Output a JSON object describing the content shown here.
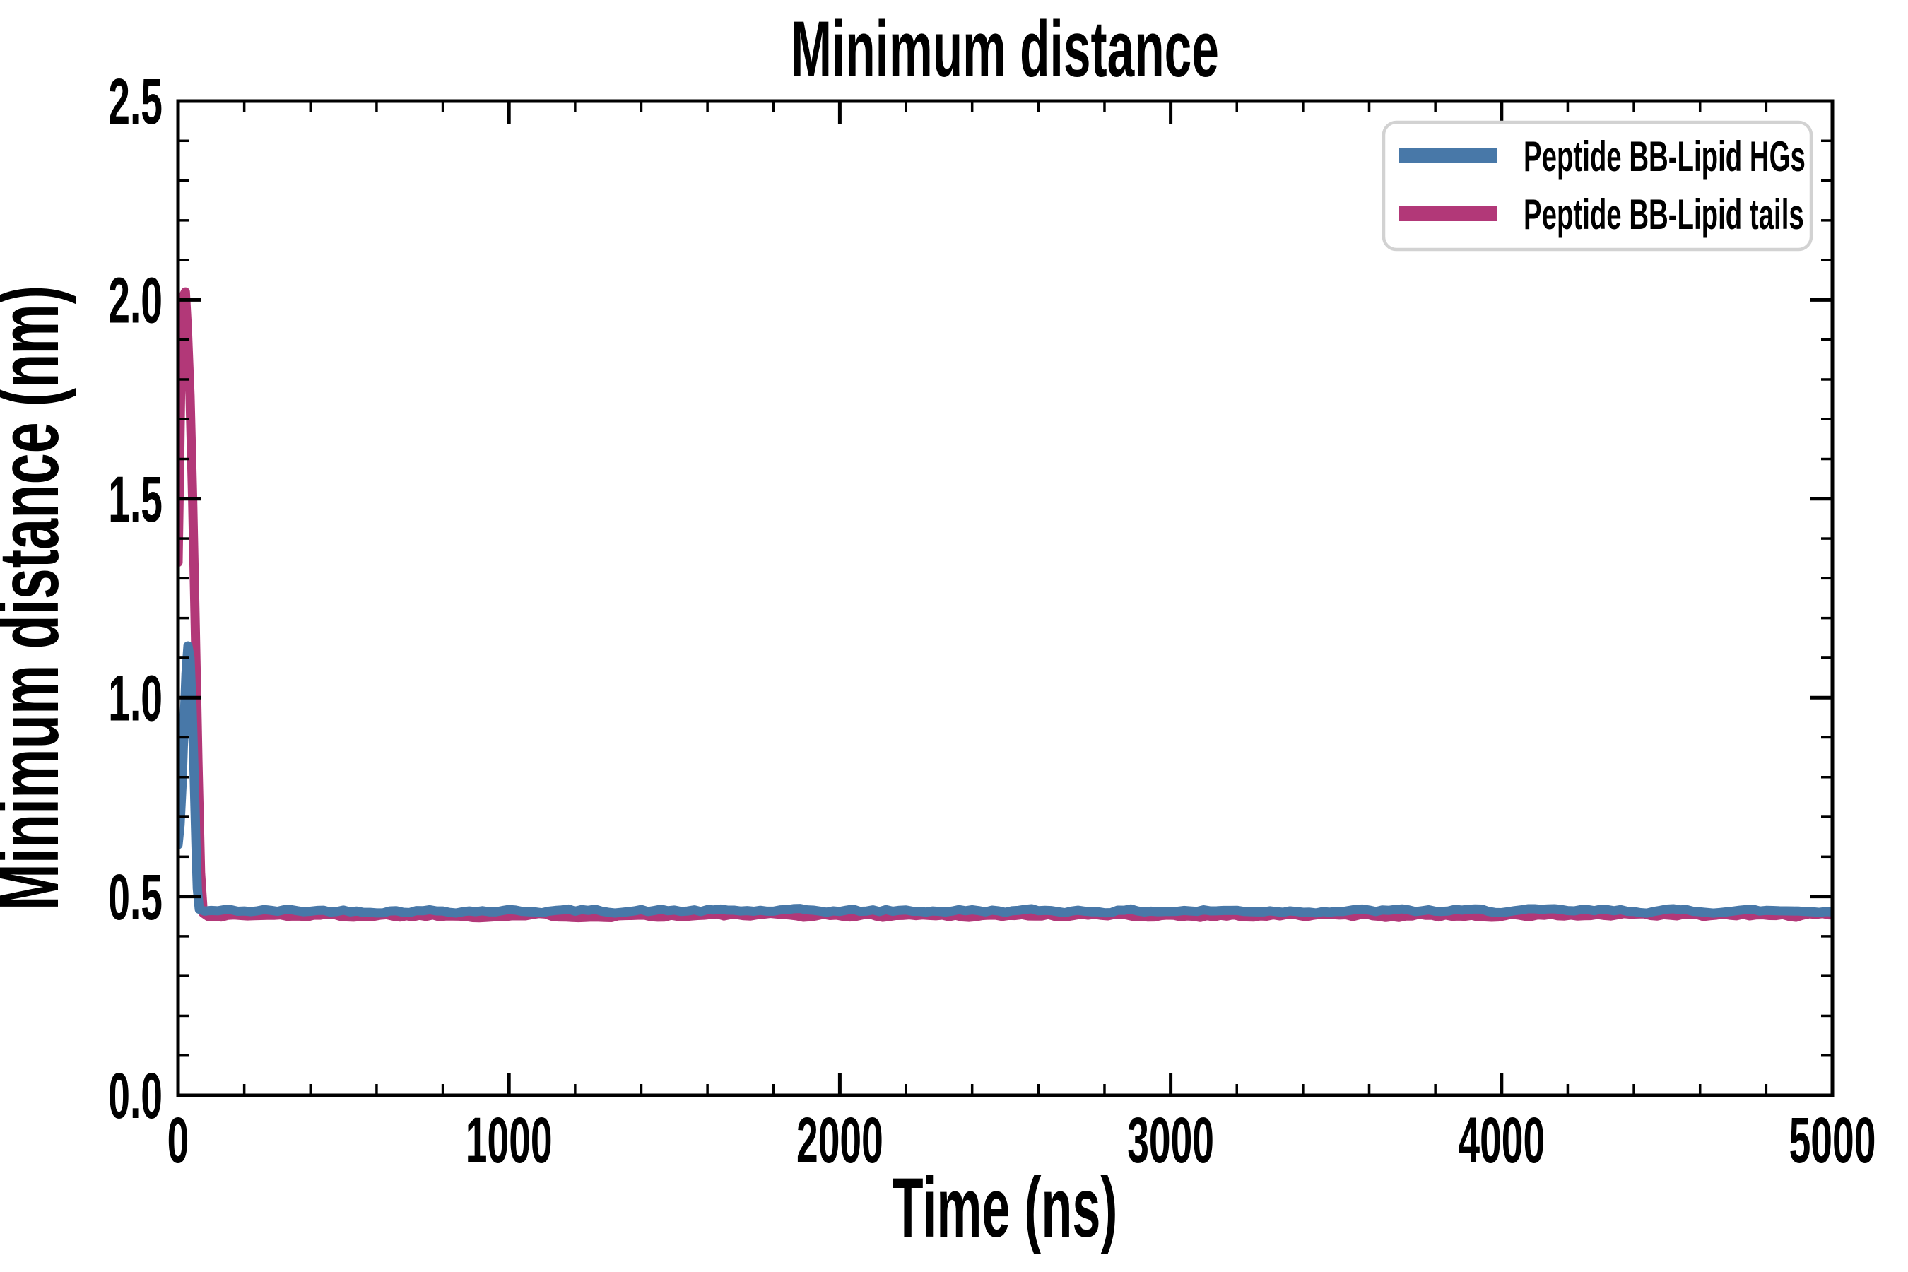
{
  "figure": {
    "background": "#ffffff",
    "spine_color": "#000000",
    "tick_direction": "in"
  },
  "chart_data": {
    "type": "line",
    "title": "Minimum distance",
    "xlabel": "Time (ns)",
    "ylabel": "Minimum distance (nm)",
    "xlim": [
      0,
      5000
    ],
    "ylim": [
      0.0,
      2.5
    ],
    "grid": false,
    "x_major_ticks": [
      0,
      1000,
      2000,
      3000,
      4000,
      5000
    ],
    "x_tick_labels": [
      "0",
      "1000",
      "2000",
      "3000",
      "4000",
      "5000"
    ],
    "x_minor_step": 200,
    "y_major_ticks": [
      0.0,
      0.5,
      1.0,
      1.5,
      2.0,
      2.5
    ],
    "y_tick_labels": [
      "0.0",
      "0.5",
      "1.0",
      "1.5",
      "2.0",
      "2.5"
    ],
    "y_minor_step": 0.1,
    "legend_position": "upper right",
    "legend": {
      "border_color": "#d2d2d2",
      "background": "#ffffff"
    },
    "series": [
      {
        "name": "Peptide BB-Lipid HGs",
        "color": "#4878a8",
        "z": 2,
        "line_width": 13,
        "spike_points": [
          [
            0,
            0.63
          ],
          [
            6,
            0.68
          ],
          [
            12,
            0.78
          ],
          [
            18,
            0.93
          ],
          [
            24,
            1.06
          ],
          [
            30,
            1.13
          ],
          [
            36,
            1.1
          ],
          [
            42,
            0.98
          ],
          [
            48,
            0.82
          ],
          [
            54,
            0.63
          ],
          [
            58,
            0.52
          ],
          [
            64,
            0.468
          ],
          [
            80,
            0.463
          ]
        ],
        "flat": {
          "from": 80,
          "to": 5000,
          "value": 0.464,
          "noise": 0.008,
          "step": 20,
          "seed": 42
        }
      },
      {
        "name": "Peptide BB-Lipid tails",
        "color": "#b23878",
        "z": 1,
        "line_width": 13,
        "spike_points": [
          [
            0,
            1.34
          ],
          [
            4,
            1.55
          ],
          [
            8,
            1.78
          ],
          [
            12,
            1.93
          ],
          [
            16,
            2.01
          ],
          [
            22,
            2.02
          ],
          [
            28,
            1.93
          ],
          [
            36,
            1.76
          ],
          [
            44,
            1.5
          ],
          [
            52,
            1.18
          ],
          [
            60,
            0.84
          ],
          [
            68,
            0.56
          ],
          [
            76,
            0.458
          ],
          [
            90,
            0.45
          ]
        ],
        "flat": {
          "from": 90,
          "to": 5000,
          "value": 0.452,
          "noise": 0.008,
          "step": 20,
          "seed": 1337
        }
      }
    ]
  }
}
